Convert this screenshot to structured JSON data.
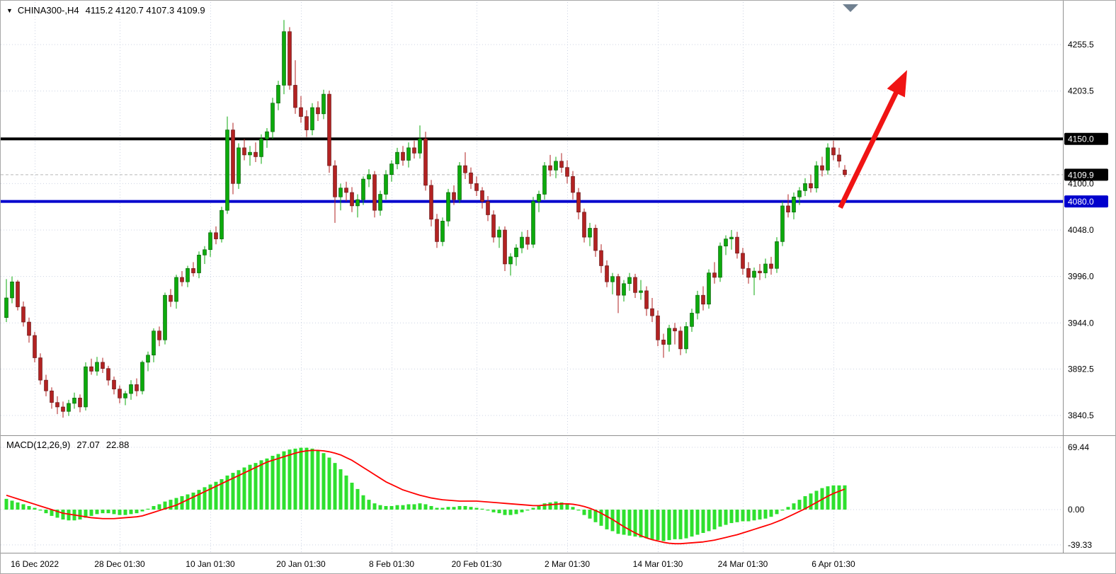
{
  "icons": {
    "symbol_marker": "▼"
  },
  "colors": {
    "background": "#ffffff",
    "grid": "#ccd3e3",
    "bull": "#0caa0c",
    "bear": "#b22222",
    "bull_edge": "#075607",
    "bear_edge": "#5e1414",
    "macd_hist": "#2ee02e",
    "macd_signal": "#ff0000",
    "separator": "#909090",
    "axis_text": "#000000",
    "badge_text": "#ffffff",
    "current_price_line": "#b8b8b8",
    "shift_marker": "#708090"
  },
  "chart_data": {
    "type": "candlestick",
    "title": {
      "symbol_tf": "CHINA300-,H4",
      "ohlc_text": "4115.2 4120.7 4107.3 4109.9"
    },
    "price_axis": {
      "range": {
        "top": 4304.6,
        "bottom": 3818.3
      },
      "ticks": [
        {
          "label": "4255.5",
          "price": 4255.5
        },
        {
          "label": "4203.5",
          "price": 4203.5
        },
        {
          "label": "4100.0",
          "price": 4100.0
        },
        {
          "label": "4048.0",
          "price": 4048.0
        },
        {
          "label": "3996.0",
          "price": 3996.0
        },
        {
          "label": "3944.0",
          "price": 3944.0
        },
        {
          "label": "3892.5",
          "price": 3892.5
        },
        {
          "label": "3840.5",
          "price": 3840.5
        }
      ],
      "badges": [
        {
          "label": "4150.0",
          "price": 4150.0,
          "bg": "#000000"
        },
        {
          "label": "4109.9",
          "price": 4109.9,
          "bg": "#000000"
        },
        {
          "label": "4080.0",
          "price": 4080.0,
          "bg": "#0000cd"
        }
      ]
    },
    "hlines": [
      {
        "price": 4150.0,
        "color": "#000000",
        "width": 4
      },
      {
        "price": 4080.0,
        "color": "#0000cd",
        "width": 4
      }
    ],
    "current_price_line": {
      "price": 4109.9
    },
    "arrow": {
      "from": {
        "index": 147.2,
        "price": 4073
      },
      "to": {
        "index": 159,
        "price": 4227
      },
      "color": "#f01414",
      "width": 7
    },
    "shift_marker": {
      "index": 149
    },
    "x_axis": {
      "labels": [
        {
          "text": "16 Dec 2022",
          "index": 5
        },
        {
          "text": "28 Dec 01:30",
          "index": 20
        },
        {
          "text": "10 Jan 01:30",
          "index": 36
        },
        {
          "text": "20 Jan 01:30",
          "index": 52
        },
        {
          "text": "8 Feb 01:30",
          "index": 68
        },
        {
          "text": "20 Feb 01:30",
          "index": 83
        },
        {
          "text": "2 Mar 01:30",
          "index": 99
        },
        {
          "text": "14 Mar 01:30",
          "index": 115
        },
        {
          "text": "24 Mar 01:30",
          "index": 130
        },
        {
          "text": "6 Apr 01:30",
          "index": 146
        }
      ]
    },
    "candles": [
      [
        3950,
        3993,
        3945,
        3972
      ],
      [
        3972,
        3996,
        3966,
        3990
      ],
      [
        3990,
        3992,
        3958,
        3962
      ],
      [
        3962,
        3968,
        3940,
        3945
      ],
      [
        3945,
        3950,
        3922,
        3930
      ],
      [
        3930,
        3934,
        3900,
        3905
      ],
      [
        3905,
        3910,
        3875,
        3880
      ],
      [
        3880,
        3886,
        3862,
        3868
      ],
      [
        3868,
        3872,
        3848,
        3855
      ],
      [
        3855,
        3862,
        3842,
        3850
      ],
      [
        3850,
        3856,
        3838,
        3845
      ],
      [
        3845,
        3858,
        3840,
        3854
      ],
      [
        3854,
        3866,
        3848,
        3860
      ],
      [
        3860,
        3864,
        3844,
        3850
      ],
      [
        3850,
        3900,
        3846,
        3895
      ],
      [
        3895,
        3904,
        3886,
        3890
      ],
      [
        3890,
        3906,
        3885,
        3900
      ],
      [
        3900,
        3905,
        3888,
        3893
      ],
      [
        3893,
        3896,
        3874,
        3880
      ],
      [
        3880,
        3884,
        3864,
        3870
      ],
      [
        3870,
        3874,
        3854,
        3860
      ],
      [
        3860,
        3868,
        3852,
        3865
      ],
      [
        3865,
        3880,
        3858,
        3875
      ],
      [
        3875,
        3882,
        3862,
        3868
      ],
      [
        3868,
        3902,
        3864,
        3900
      ],
      [
        3900,
        3912,
        3890,
        3908
      ],
      [
        3908,
        3938,
        3900,
        3935
      ],
      [
        3935,
        3940,
        3918,
        3925
      ],
      [
        3925,
        3978,
        3920,
        3975
      ],
      [
        3975,
        3982,
        3962,
        3968
      ],
      [
        3968,
        3998,
        3960,
        3995
      ],
      [
        3995,
        4002,
        3985,
        3990
      ],
      [
        3990,
        4008,
        3984,
        4005
      ],
      [
        4005,
        4012,
        3996,
        4000
      ],
      [
        4000,
        4024,
        3994,
        4020
      ],
      [
        4020,
        4030,
        4010,
        4026
      ],
      [
        4026,
        4048,
        4018,
        4045
      ],
      [
        4045,
        4052,
        4032,
        4038
      ],
      [
        4038,
        4074,
        4034,
        4070
      ],
      [
        4070,
        4175,
        4066,
        4160
      ],
      [
        4160,
        4168,
        4088,
        4100
      ],
      [
        4100,
        4145,
        4094,
        4140
      ],
      [
        4140,
        4150,
        4126,
        4132
      ],
      [
        4132,
        4142,
        4120,
        4135
      ],
      [
        4135,
        4146,
        4124,
        4130
      ],
      [
        4130,
        4155,
        4122,
        4150
      ],
      [
        4150,
        4162,
        4140,
        4158
      ],
      [
        4158,
        4196,
        4150,
        4190
      ],
      [
        4190,
        4215,
        4182,
        4210
      ],
      [
        4210,
        4283,
        4200,
        4270
      ],
      [
        4270,
        4275,
        4205,
        4210
      ],
      [
        4210,
        4238,
        4178,
        4185
      ],
      [
        4185,
        4198,
        4168,
        4175
      ],
      [
        4175,
        4182,
        4152,
        4160
      ],
      [
        4160,
        4190,
        4154,
        4185
      ],
      [
        4185,
        4192,
        4170,
        4178
      ],
      [
        4178,
        4205,
        4172,
        4200
      ],
      [
        4200,
        4204,
        4112,
        4120
      ],
      [
        4120,
        4126,
        4056,
        4085
      ],
      [
        4085,
        4100,
        4070,
        4095
      ],
      [
        4095,
        4102,
        4080,
        4090
      ],
      [
        4090,
        4096,
        4068,
        4075
      ],
      [
        4075,
        4088,
        4062,
        4082
      ],
      [
        4082,
        4108,
        4076,
        4105
      ],
      [
        4105,
        4116,
        4096,
        4110
      ],
      [
        4110,
        4114,
        4062,
        4070
      ],
      [
        4070,
        4092,
        4064,
        4088
      ],
      [
        4088,
        4115,
        4082,
        4110
      ],
      [
        4110,
        4126,
        4102,
        4122
      ],
      [
        4122,
        4140,
        4116,
        4135
      ],
      [
        4135,
        4142,
        4120,
        4126
      ],
      [
        4126,
        4146,
        4118,
        4140
      ],
      [
        4140,
        4148,
        4128,
        4134
      ],
      [
        4134,
        4165,
        4128,
        4150
      ],
      [
        4150,
        4158,
        4092,
        4098
      ],
      [
        4098,
        4104,
        4052,
        4060
      ],
      [
        4060,
        4066,
        4028,
        4035
      ],
      [
        4035,
        4062,
        4030,
        4058
      ],
      [
        4058,
        4094,
        4052,
        4090
      ],
      [
        4090,
        4098,
        4076,
        4082
      ],
      [
        4082,
        4124,
        4078,
        4120
      ],
      [
        4120,
        4135,
        4105,
        4112
      ],
      [
        4112,
        4118,
        4094,
        4100
      ],
      [
        4100,
        4108,
        4086,
        4092
      ],
      [
        4092,
        4096,
        4072,
        4080
      ],
      [
        4080,
        4086,
        4058,
        4065
      ],
      [
        4065,
        4070,
        4034,
        4040
      ],
      [
        4040,
        4052,
        4028,
        4048
      ],
      [
        4048,
        4052,
        4002,
        4010
      ],
      [
        4010,
        4022,
        3997,
        4018
      ],
      [
        4018,
        4032,
        4008,
        4028
      ],
      [
        4028,
        4046,
        4022,
        4040
      ],
      [
        4040,
        4048,
        4026,
        4032
      ],
      [
        4032,
        4085,
        4028,
        4080
      ],
      [
        4080,
        4092,
        4068,
        4088
      ],
      [
        4088,
        4124,
        4082,
        4120
      ],
      [
        4120,
        4132,
        4108,
        4115
      ],
      [
        4115,
        4130,
        4106,
        4125
      ],
      [
        4125,
        4134,
        4112,
        4118
      ],
      [
        4118,
        4126,
        4100,
        4108
      ],
      [
        4108,
        4114,
        4082,
        4090
      ],
      [
        4090,
        4095,
        4060,
        4068
      ],
      [
        4068,
        4072,
        4034,
        4040
      ],
      [
        4040,
        4056,
        4030,
        4050
      ],
      [
        4050,
        4054,
        4018,
        4025
      ],
      [
        4025,
        4032,
        4000,
        4008
      ],
      [
        4008,
        4014,
        3984,
        3990
      ],
      [
        3990,
        4000,
        3976,
        3996
      ],
      [
        3996,
        3999,
        3955,
        3975
      ],
      [
        3975,
        3992,
        3968,
        3988
      ],
      [
        3988,
        4000,
        3980,
        3995
      ],
      [
        3995,
        3999,
        3972,
        3978
      ],
      [
        3978,
        3992,
        3970,
        3980
      ],
      [
        3980,
        3985,
        3952,
        3960
      ],
      [
        3960,
        3972,
        3945,
        3952
      ],
      [
        3952,
        3958,
        3918,
        3925
      ],
      [
        3925,
        3932,
        3905,
        3920
      ],
      [
        3920,
        3942,
        3912,
        3938
      ],
      [
        3938,
        3944,
        3920,
        3935
      ],
      [
        3935,
        3940,
        3908,
        3915
      ],
      [
        3915,
        3945,
        3910,
        3940
      ],
      [
        3940,
        3960,
        3934,
        3955
      ],
      [
        3955,
        3980,
        3948,
        3975
      ],
      [
        3975,
        3985,
        3958,
        3965
      ],
      [
        3965,
        4004,
        3960,
        4000
      ],
      [
        4000,
        4012,
        3988,
        3995
      ],
      [
        3995,
        4034,
        3990,
        4030
      ],
      [
        4030,
        4042,
        4020,
        4038
      ],
      [
        4038,
        4048,
        4026,
        4040
      ],
      [
        4040,
        4046,
        4016,
        4022
      ],
      [
        4022,
        4028,
        3998,
        4005
      ],
      [
        4005,
        4012,
        3988,
        3995
      ],
      [
        3995,
        4006,
        3975,
        4002
      ],
      [
        4002,
        4010,
        3992,
        4000
      ],
      [
        4000,
        4016,
        3994,
        4010
      ],
      [
        4010,
        4018,
        3998,
        4005
      ],
      [
        4005,
        4040,
        4000,
        4035
      ],
      [
        4035,
        4080,
        4030,
        4075
      ],
      [
        4075,
        4088,
        4062,
        4068
      ],
      [
        4068,
        4090,
        4060,
        4085
      ],
      [
        4085,
        4096,
        4076,
        4092
      ],
      [
        4092,
        4106,
        4086,
        4100
      ],
      [
        4100,
        4110,
        4090,
        4095
      ],
      [
        4095,
        4125,
        4090,
        4120
      ],
      [
        4120,
        4130,
        4108,
        4115
      ],
      [
        4115,
        4145,
        4110,
        4140
      ],
      [
        4140,
        4148,
        4126,
        4132
      ],
      [
        4132,
        4140,
        4118,
        4125
      ],
      [
        4115.2,
        4120.7,
        4107.3,
        4109.9
      ]
    ],
    "macd": {
      "label": "MACD(12,26,9)",
      "main_display": "27.07",
      "signal_display": "22.88",
      "main_value": 27.07,
      "signal_value": 22.88,
      "range": {
        "top": 82.1,
        "bottom": -48.1
      },
      "axis_ticks": [
        {
          "label": "69.44",
          "value": 69.44
        },
        {
          "label": "0.00",
          "value": 0
        },
        {
          "label": "-39.33",
          "value": -39.33
        }
      ],
      "histogram": [
        12,
        10,
        8,
        6,
        4,
        2,
        -1,
        -4,
        -7,
        -9,
        -11,
        -12,
        -12,
        -11,
        -9,
        -7,
        -5,
        -4,
        -4,
        -5,
        -6,
        -6,
        -5,
        -4,
        -2,
        1,
        4,
        6,
        9,
        11,
        13,
        15,
        17,
        19,
        22,
        25,
        28,
        31,
        34,
        38,
        41,
        44,
        47,
        50,
        52,
        55,
        57,
        60,
        62,
        65,
        67,
        68,
        69,
        69,
        68,
        66,
        63,
        58,
        52,
        45,
        38,
        30,
        23,
        16,
        11,
        7,
        5,
        4,
        4,
        5,
        5,
        6,
        6,
        7,
        6,
        4,
        2,
        2,
        3,
        3,
        4,
        4,
        3,
        2,
        1,
        -1,
        -3,
        -4,
        -6,
        -6,
        -5,
        -3,
        -1,
        2,
        4,
        7,
        8,
        9,
        8,
        6,
        3,
        -1,
        -6,
        -10,
        -14,
        -18,
        -22,
        -24,
        -27,
        -28,
        -29,
        -30,
        -31,
        -32,
        -33,
        -34,
        -35,
        -34,
        -33,
        -33,
        -32,
        -30,
        -28,
        -26,
        -24,
        -22,
        -19,
        -17,
        -15,
        -14,
        -13,
        -13,
        -12,
        -11,
        -10,
        -8,
        -5,
        -1,
        3,
        7,
        11,
        15,
        18,
        21,
        24,
        26,
        27,
        27,
        27.07
      ],
      "signal": [
        16,
        14,
        12,
        10,
        8,
        6,
        4,
        2,
        0,
        -2,
        -4,
        -5,
        -6,
        -7,
        -8,
        -9,
        -9.5,
        -10,
        -10,
        -10,
        -9.5,
        -9,
        -8.5,
        -8,
        -7,
        -5,
        -3,
        -1,
        1,
        3,
        5,
        8,
        11,
        14,
        17,
        20,
        23,
        26,
        29,
        32,
        35,
        38,
        41,
        44,
        47,
        50,
        53,
        55,
        57,
        59,
        61,
        63,
        64.5,
        65.5,
        66,
        66,
        65.5,
        64.5,
        63,
        61,
        58,
        55,
        51,
        47,
        43,
        39,
        35,
        31,
        28,
        25,
        22,
        20,
        18,
        16,
        14.5,
        13,
        12,
        11,
        10.5,
        10,
        9.5,
        9.5,
        9.5,
        9.5,
        9,
        8.5,
        8,
        7.5,
        7,
        6.5,
        6,
        5.5,
        5,
        4.5,
        4.5,
        5,
        5.5,
        6,
        6.5,
        6.5,
        6,
        5,
        3.5,
        1.5,
        -1,
        -4,
        -7.5,
        -11,
        -15,
        -19,
        -22.5,
        -26,
        -29,
        -31.5,
        -33.5,
        -35,
        -36.5,
        -37.5,
        -38,
        -38,
        -37.5,
        -37,
        -36.5,
        -36,
        -35,
        -34,
        -32.5,
        -31,
        -29.5,
        -28,
        -26,
        -24,
        -22,
        -20,
        -18,
        -16,
        -13.5,
        -11,
        -8,
        -5,
        -2,
        1,
        4.5,
        8,
        11.5,
        15,
        18,
        20.5,
        22.88
      ]
    }
  }
}
